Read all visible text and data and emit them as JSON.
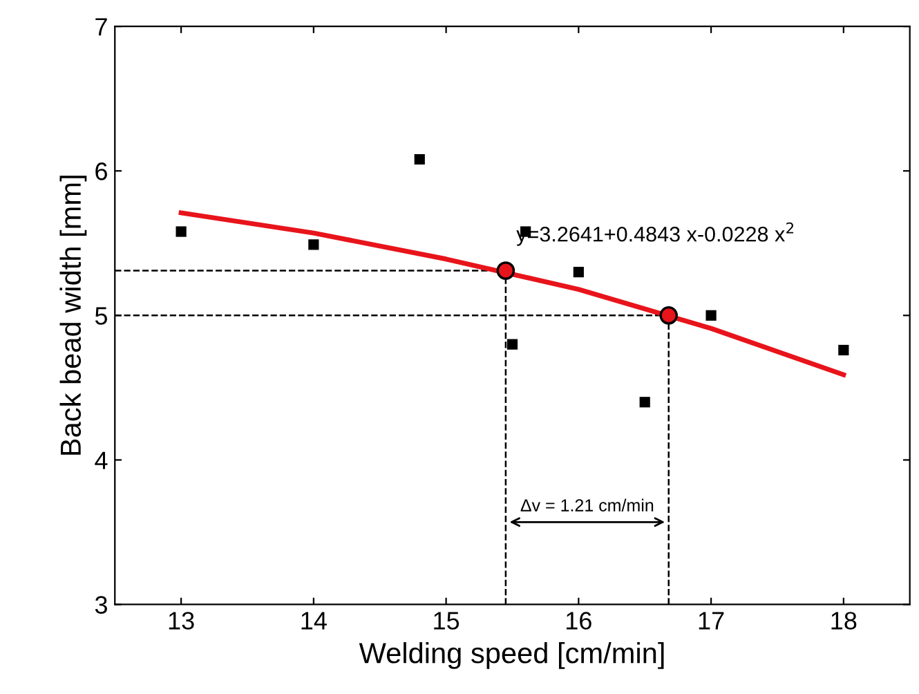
{
  "chart_data": {
    "type": "scatter",
    "xlabel": "Welding speed [cm/min]",
    "ylabel": "Back bead width [mm]",
    "xlim": [
      12.5,
      18.5
    ],
    "xticks": [
      13,
      14,
      15,
      16,
      17,
      18
    ],
    "ylim": [
      3,
      7
    ],
    "yticks": [
      3,
      4,
      5,
      6,
      7
    ],
    "grid": false,
    "series": [
      {
        "marker": "square",
        "color": "#000000",
        "x": [
          13,
          14,
          14.8,
          15.5,
          15.6,
          16,
          16.5,
          17,
          18
        ],
        "values": [
          5.58,
          5.49,
          6.08,
          4.8,
          5.58,
          5.3,
          4.4,
          5.0,
          4.76
        ]
      },
      {
        "type": "line",
        "marker": "none",
        "color": "#e8141b",
        "x": [
          13,
          14,
          15,
          16,
          17,
          18
        ],
        "values": [
          5.71,
          5.57,
          5.39,
          5.18,
          4.91,
          4.59
        ]
      },
      {
        "marker": "circle",
        "color": "#e8141b",
        "x": [
          15.45,
          16.68
        ],
        "values": [
          5.31,
          5.0
        ]
      }
    ],
    "ref_lines": [
      {
        "axis": "y",
        "value": 5.31,
        "line_style": "dashed",
        "color": "#000000"
      },
      {
        "axis": "y",
        "value": 5.0,
        "line_style": "dashed",
        "color": "#000000"
      },
      {
        "axis": "x",
        "value": 15.45,
        "line_style": "dashed",
        "color": "#000000"
      },
      {
        "axis": "x",
        "value": 16.68,
        "line_style": "dashed",
        "color": "#000000"
      }
    ],
    "annotations": [
      "y=3.2641+0.4843 x-0.0228 x$^{2}$",
      "Δv = 1.21 cm/min"
    ]
  }
}
